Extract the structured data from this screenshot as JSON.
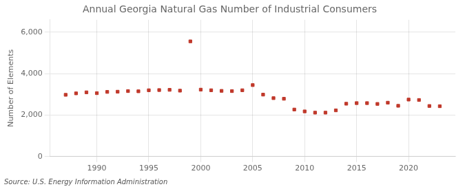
{
  "chart_data": {
    "type": "scatter",
    "title": "Annual Georgia Natural Gas Number of Industrial Consumers",
    "ylabel": "Number of Elements",
    "source": "Source: U.S. Energy Information Administration",
    "x": [
      1987,
      1988,
      1989,
      1990,
      1991,
      1992,
      1993,
      1994,
      1995,
      1996,
      1997,
      1998,
      1999,
      2000,
      2001,
      2002,
      2003,
      2004,
      2005,
      2006,
      2007,
      2008,
      2009,
      2010,
      2011,
      2012,
      2013,
      2014,
      2015,
      2016,
      2017,
      2018,
      2019,
      2020,
      2021,
      2022,
      2023
    ],
    "values": [
      2980,
      3050,
      3100,
      3060,
      3120,
      3130,
      3160,
      3150,
      3200,
      3210,
      3220,
      3180,
      5560,
      3230,
      3200,
      3170,
      3160,
      3200,
      3450,
      2990,
      2820,
      2790,
      2270,
      2180,
      2120,
      2120,
      2230,
      2550,
      2580,
      2580,
      2540,
      2600,
      2450,
      2750,
      2730,
      2440,
      2430
    ],
    "color": "#c0392b",
    "marker": "square",
    "xlim": [
      1985.5,
      2024.5
    ],
    "xticks": [
      1990,
      1995,
      2000,
      2005,
      2010,
      2015,
      2020
    ],
    "ylim": [
      0,
      6600
    ],
    "yticks": [
      0,
      {
        "value": 2000,
        "label": "2,000"
      },
      {
        "value": 4000,
        "label": "4,000"
      },
      {
        "value": 6000,
        "label": "6,000"
      }
    ],
    "grid": true
  }
}
